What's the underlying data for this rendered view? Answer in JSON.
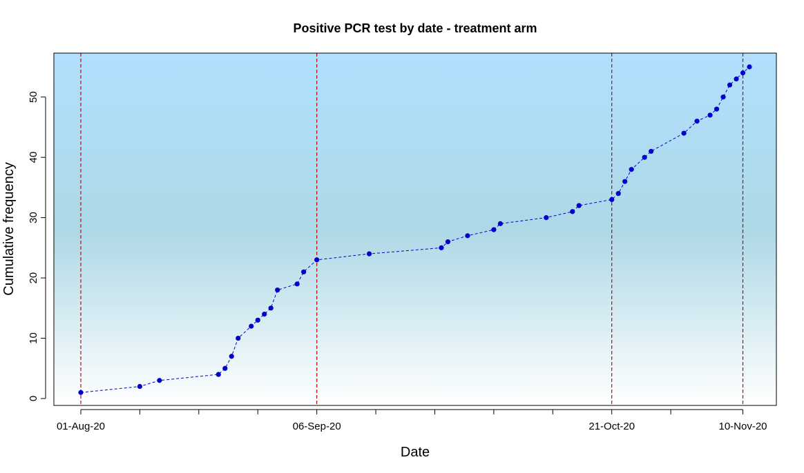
{
  "chart_data": {
    "type": "line",
    "title": "Positive PCR test by date - treatment arm",
    "xlabel": "Date",
    "ylabel": "Cumulative frequency",
    "x_axis_kind": "date",
    "xlim": [
      "2020-08-01",
      "2020-11-11"
    ],
    "ylim": [
      0,
      55
    ],
    "x_ticks": [
      "2020-08-01",
      "2020-08-10",
      "2020-08-19",
      "2020-08-28",
      "2020-09-06",
      "2020-09-15",
      "2020-09-24",
      "2020-10-03",
      "2020-10-12",
      "2020-10-21",
      "2020-10-30",
      "2020-11-10"
    ],
    "x_tick_labels": [
      "01-Aug-20",
      "",
      "",
      "",
      "06-Sep-20",
      "",
      "",
      "",
      "",
      "21-Oct-20",
      "",
      "10-Nov-20"
    ],
    "y_ticks": [
      0,
      10,
      20,
      30,
      40,
      50
    ],
    "reference_lines_x": [
      "2020-08-01",
      "2020-09-06",
      "2020-10-21",
      "2020-11-10"
    ],
    "reference_line_color": "#cc0000",
    "line_color": "#0000cc",
    "point_color": "#0000cc",
    "background_gradient": [
      "#ffffff",
      "#add8e6",
      "#b0e0ff"
    ],
    "legend": "none",
    "grid": false,
    "points": [
      {
        "x": "2020-08-01",
        "y": 1
      },
      {
        "x": "2020-08-10",
        "y": 2
      },
      {
        "x": "2020-08-13",
        "y": 3
      },
      {
        "x": "2020-08-22",
        "y": 4
      },
      {
        "x": "2020-08-23",
        "y": 5
      },
      {
        "x": "2020-08-24",
        "y": 7
      },
      {
        "x": "2020-08-25",
        "y": 10
      },
      {
        "x": "2020-08-27",
        "y": 12
      },
      {
        "x": "2020-08-28",
        "y": 13
      },
      {
        "x": "2020-08-29",
        "y": 14
      },
      {
        "x": "2020-08-30",
        "y": 15
      },
      {
        "x": "2020-08-31",
        "y": 18
      },
      {
        "x": "2020-09-03",
        "y": 19
      },
      {
        "x": "2020-09-04",
        "y": 21
      },
      {
        "x": "2020-09-06",
        "y": 23
      },
      {
        "x": "2020-09-14",
        "y": 24
      },
      {
        "x": "2020-09-25",
        "y": 25
      },
      {
        "x": "2020-09-26",
        "y": 26
      },
      {
        "x": "2020-09-29",
        "y": 27
      },
      {
        "x": "2020-10-03",
        "y": 28
      },
      {
        "x": "2020-10-04",
        "y": 29
      },
      {
        "x": "2020-10-11",
        "y": 30
      },
      {
        "x": "2020-10-15",
        "y": 31
      },
      {
        "x": "2020-10-16",
        "y": 32
      },
      {
        "x": "2020-10-21",
        "y": 33
      },
      {
        "x": "2020-10-22",
        "y": 34
      },
      {
        "x": "2020-10-23",
        "y": 36
      },
      {
        "x": "2020-10-24",
        "y": 38
      },
      {
        "x": "2020-10-26",
        "y": 40
      },
      {
        "x": "2020-10-27",
        "y": 41
      },
      {
        "x": "2020-11-01",
        "y": 44
      },
      {
        "x": "2020-11-03",
        "y": 46
      },
      {
        "x": "2020-11-05",
        "y": 47
      },
      {
        "x": "2020-11-06",
        "y": 48
      },
      {
        "x": "2020-11-07",
        "y": 50
      },
      {
        "x": "2020-11-08",
        "y": 52
      },
      {
        "x": "2020-11-09",
        "y": 53
      },
      {
        "x": "2020-11-10",
        "y": 54
      },
      {
        "x": "2020-11-11",
        "y": 55
      }
    ]
  }
}
